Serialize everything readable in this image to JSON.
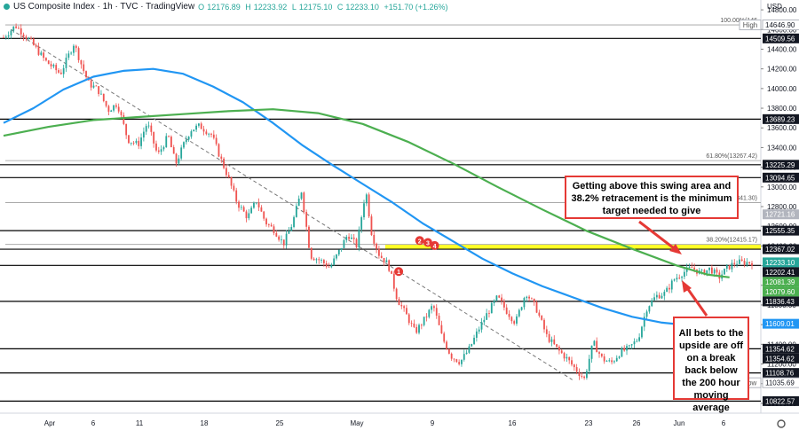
{
  "header": {
    "symbol": "US Composite Index · 1h · TVC · TradingView",
    "o_label": "O",
    "o_value": "12176.89",
    "h_label": "H",
    "h_value": "12233.92",
    "l_label": "L",
    "l_value": "12175.10",
    "c_label": "C",
    "c_value": "12233.10",
    "change": "+151.70 (+1.26%)"
  },
  "annotations": {
    "top": "Getting above this swing area and 38.2% retracement is the minimum target needed to give",
    "bottom": "All bets to the upside are off on a break back below the 200 hour moving average"
  },
  "colors": {
    "candle_up": "#26a69a",
    "candle_down": "#ef5350",
    "ma100": "#2196f3",
    "ma200": "#4caf50",
    "swing_zone": "#ffff00",
    "annotation_border": "#e53935",
    "current_price_bg": "#26a69a",
    "ma100_bg": "#2196f3",
    "ma200_bg": "#4caf50"
  },
  "chart_data": {
    "type": "candlestick",
    "currency": "USD",
    "ylim": [
      10700,
      14900
    ],
    "y_ticks": [
      14800,
      14600,
      14400,
      14200,
      14000,
      13800,
      13600,
      13400,
      13200,
      13000,
      12800,
      12600,
      12400,
      12200,
      12000,
      11800,
      11600,
      11400,
      11200,
      11000,
      10800
    ],
    "x_ticks": [
      "Apr",
      "6",
      "11",
      "18",
      "25",
      "May",
      "9",
      "16",
      "23",
      "26",
      "Jun",
      "6"
    ],
    "horizontal_levels": [
      14509.56,
      13689.23,
      13225.29,
      13094.65,
      12555.35,
      12367.02,
      12202.41,
      11836.43,
      11354.62,
      11108.76,
      10822.57
    ],
    "fib_levels": [
      {
        "label": "100.00%(146",
        "value": 14646.9
      },
      {
        "label": "61.80%(13267.42)",
        "value": 13267.42
      },
      {
        "label": "50.00%(12841.30)",
        "value": 12841.3
      },
      {
        "label": "38.20%(12415.17)",
        "value": 12415.17
      }
    ],
    "price_labels": [
      {
        "text": "14646.90",
        "tag": "High",
        "value": 14646.9,
        "style": "outline"
      },
      {
        "text": "14509.56",
        "value": 14509.56,
        "style": "dark"
      },
      {
        "text": "13689.23",
        "value": 13689.23,
        "style": "dark"
      },
      {
        "text": "13225.29",
        "value": 13225.29,
        "style": "dark"
      },
      {
        "text": "13094.65",
        "value": 13094.65,
        "style": "dark"
      },
      {
        "text": "12721.16",
        "value": 12721.16,
        "style": "grey"
      },
      {
        "text": "12555.35",
        "value": 12555.35,
        "style": "dark"
      },
      {
        "text": "12367.02",
        "value": 12367.02,
        "style": "dark"
      },
      {
        "text": "12233.10",
        "value": 12233.1,
        "style": "current"
      },
      {
        "text": "12202.41",
        "value": 12202.41,
        "style": "dark"
      },
      {
        "text": "12081.39",
        "value": 12081.39,
        "style": "ma200"
      },
      {
        "text": "12079.60",
        "value": 12079.6,
        "style": "ma200"
      },
      {
        "text": "11836.43",
        "value": 11836.43,
        "style": "dark"
      },
      {
        "text": "11609.01",
        "value": 11609.01,
        "style": "ma100"
      },
      {
        "text": "11354.62",
        "value": 11354.62,
        "style": "dark"
      },
      {
        "text": "11354.62",
        "value": 11354.62,
        "style": "dark"
      },
      {
        "text": "11108.76",
        "value": 11108.76,
        "style": "dark"
      },
      {
        "text": "11035.69",
        "tag": "Low",
        "value": 11035.69,
        "style": "outline"
      },
      {
        "text": "10822.57",
        "value": 10822.57,
        "style": "dark"
      }
    ],
    "swing_zone": [
      12367.02,
      12415.17
    ],
    "markers": [
      {
        "label": "1",
        "t": 0.528,
        "value": 12140
      },
      {
        "label": "2",
        "t": 0.556,
        "value": 12455
      },
      {
        "label": "3",
        "t": 0.567,
        "value": 12435
      },
      {
        "label": "4",
        "t": 0.576,
        "value": 12405
      }
    ],
    "path_t": [
      0.0,
      0.016,
      0.036,
      0.056,
      0.076,
      0.094,
      0.106,
      0.114,
      0.126,
      0.14,
      0.152,
      0.166,
      0.18,
      0.192,
      0.206,
      0.22,
      0.23,
      0.24,
      0.25,
      0.262,
      0.278,
      0.29,
      0.3,
      0.312,
      0.326,
      0.338,
      0.35,
      0.362,
      0.374,
      0.386,
      0.398,
      0.41,
      0.424,
      0.436,
      0.448,
      0.46,
      0.472,
      0.484,
      0.492,
      0.502,
      0.514,
      0.526,
      0.538,
      0.55,
      0.562,
      0.574,
      0.586,
      0.598,
      0.61,
      0.622,
      0.634,
      0.646,
      0.66,
      0.672,
      0.684,
      0.698,
      0.712,
      0.726,
      0.74,
      0.752,
      0.764,
      0.776,
      0.788,
      0.8,
      0.812,
      0.824,
      0.836,
      0.848,
      0.86,
      0.872,
      0.884,
      0.896,
      0.908,
      0.92,
      0.932,
      0.944,
      0.956,
      0.966,
      0.978
    ],
    "path_close": [
      14520,
      14640,
      14480,
      14280,
      14150,
      14460,
      14200,
      14050,
      13990,
      13780,
      13850,
      13480,
      13430,
      13650,
      13320,
      13520,
      13230,
      13420,
      13580,
      13620,
      13530,
      13290,
      13100,
      12840,
      12690,
      12860,
      12640,
      12560,
      12420,
      12630,
      12960,
      12300,
      12250,
      12180,
      12340,
      12520,
      12400,
      12970,
      12520,
      12310,
      12210,
      11860,
      11700,
      11520,
      11650,
      11800,
      11470,
      11280,
      11220,
      11350,
      11540,
      11710,
      11880,
      11740,
      11620,
      11930,
      11760,
      11480,
      11350,
      11260,
      11150,
      11050,
      11420,
      11250,
      11210,
      11320,
      11360,
      11460,
      11780,
      11890,
      11920,
      12060,
      12130,
      12180,
      12120,
      12170,
      12080,
      12170,
      12233.1
    ],
    "ma100_t": [
      0.0,
      0.04,
      0.08,
      0.12,
      0.16,
      0.2,
      0.24,
      0.28,
      0.32,
      0.36,
      0.4,
      0.44,
      0.48,
      0.52,
      0.56,
      0.6,
      0.64,
      0.68,
      0.72,
      0.76,
      0.8,
      0.84,
      0.88,
      0.92,
      0.95,
      0.97
    ],
    "ma100_values": [
      13650,
      13800,
      13990,
      14120,
      14180,
      14200,
      14150,
      14020,
      13860,
      13650,
      13420,
      13220,
      13030,
      12840,
      12630,
      12450,
      12270,
      12120,
      11990,
      11880,
      11770,
      11680,
      11620,
      11590,
      11600,
      11609
    ],
    "ma200_t": [
      0.0,
      0.06,
      0.12,
      0.18,
      0.24,
      0.3,
      0.36,
      0.42,
      0.48,
      0.54,
      0.6,
      0.66,
      0.72,
      0.78,
      0.84,
      0.9,
      0.94,
      0.97
    ],
    "ma200_values": [
      13520,
      13610,
      13680,
      13710,
      13740,
      13770,
      13790,
      13750,
      13640,
      13460,
      13240,
      13000,
      12770,
      12550,
      12370,
      12200,
      12110,
      12081
    ]
  }
}
